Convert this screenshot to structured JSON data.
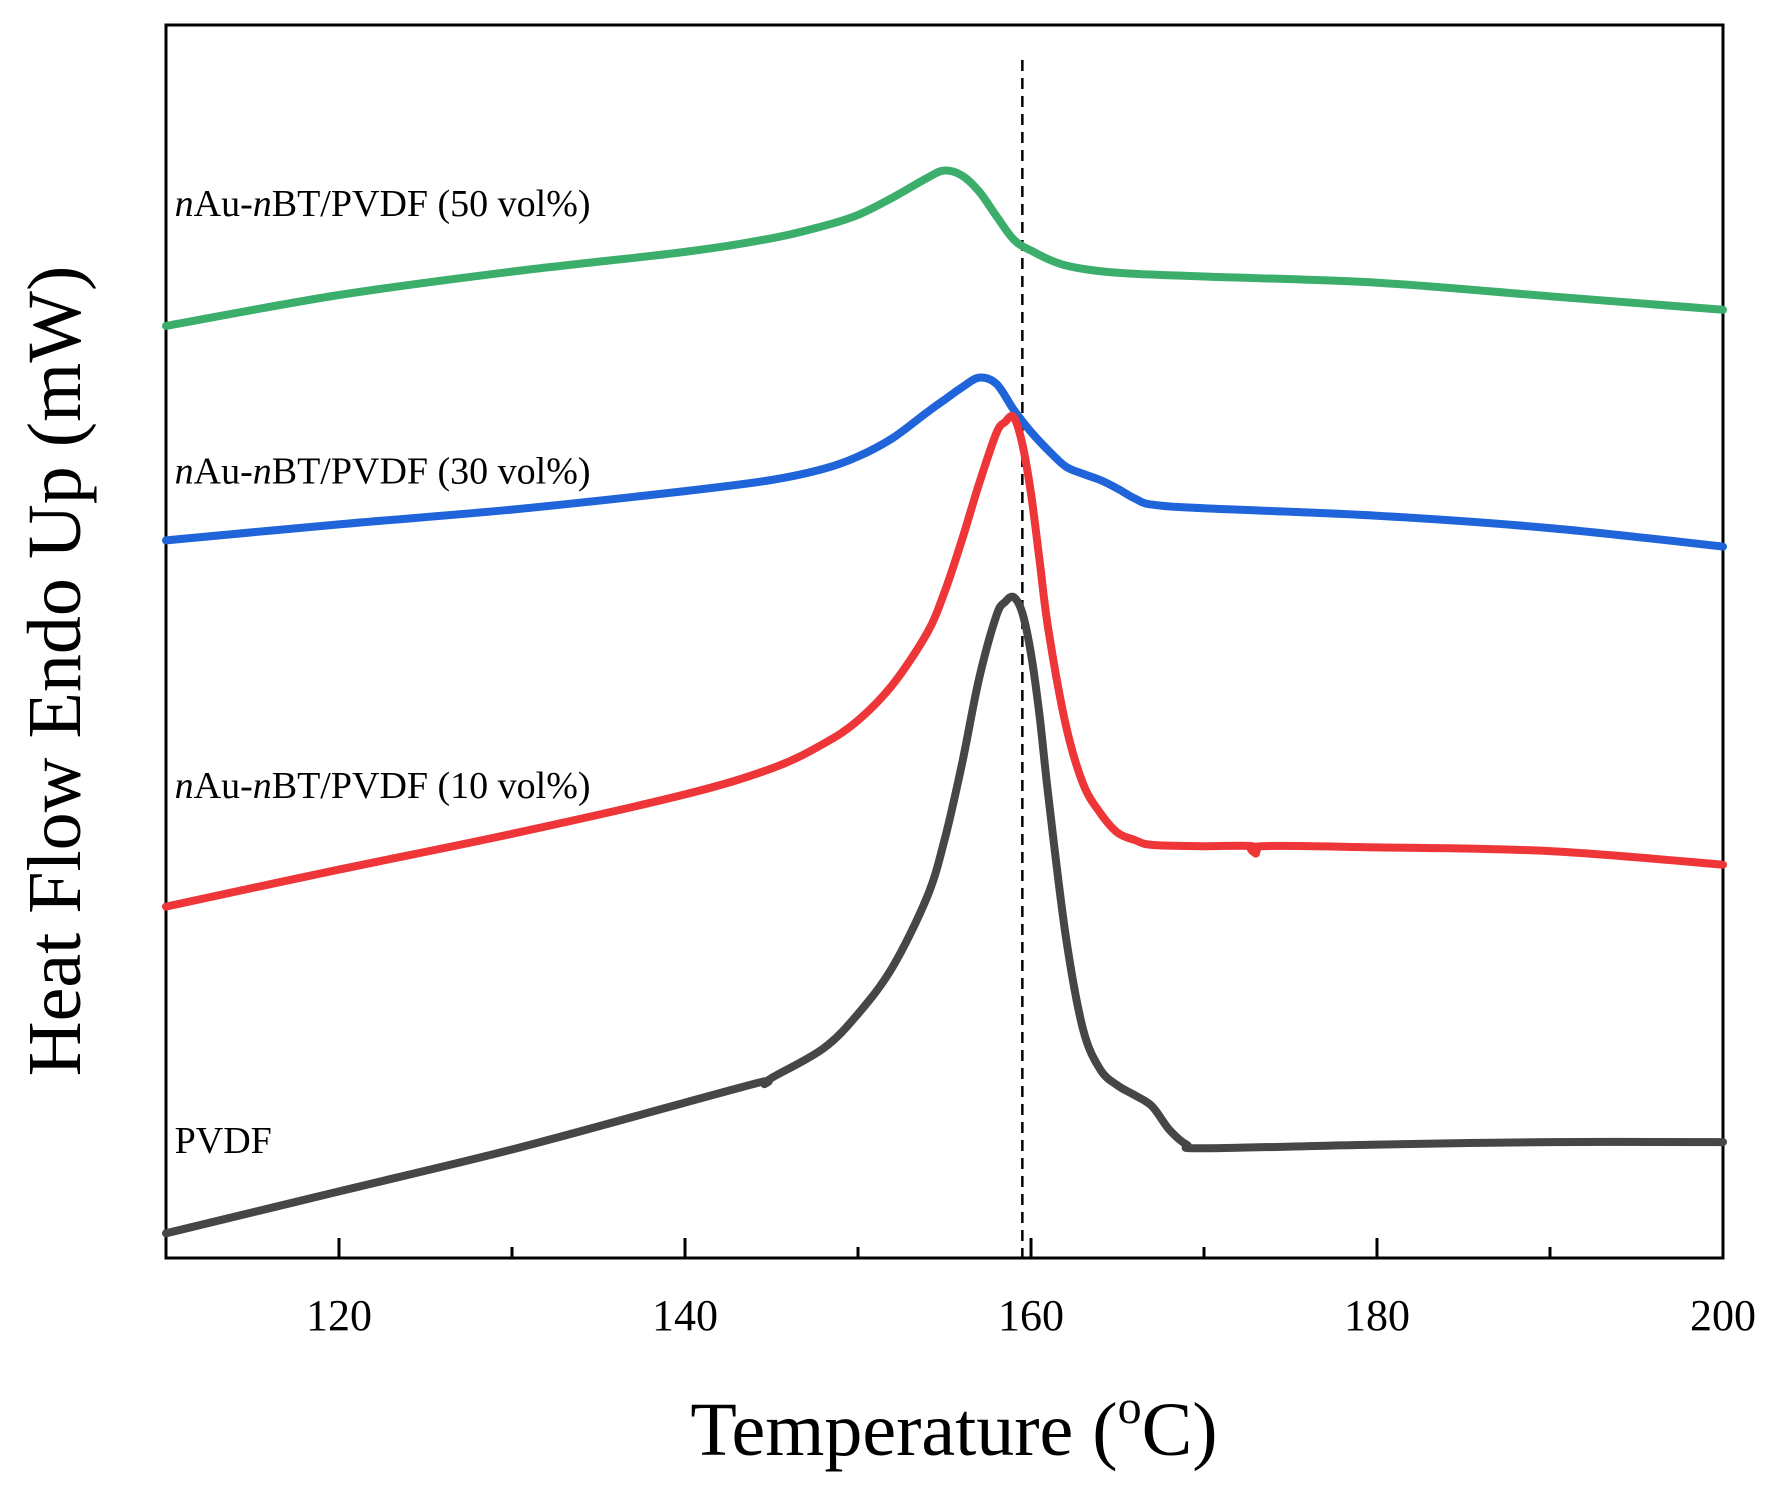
{
  "chart_data": {
    "type": "line",
    "xlabel": "Temperature (",
    "xlabel_sup": "o",
    "xlabel_end": "C)",
    "ylabel": "Heat Flow Endo Up (mW)",
    "xlim": [
      110,
      200
    ],
    "ylim": [
      0,
      100
    ],
    "x_ticks_major": [
      120,
      140,
      160,
      180,
      200
    ],
    "x_ticks_minor": [
      130,
      150,
      170,
      190
    ],
    "y_ticks_labeled": false,
    "grid": false,
    "reference_line": {
      "x": 159.5,
      "style": "dashed"
    },
    "series": [
      {
        "italic_prefix": "n",
        "mid_text": "Au-",
        "italic_mid": "n",
        "suffix": "BT/PVDF (50 vol%)",
        "color": "#3cae6c",
        "label_anchor": [
          110.5,
          84.5
        ],
        "x": [
          110,
          120,
          130,
          140,
          145,
          148,
          150,
          152,
          154,
          155,
          156,
          157,
          158,
          159,
          160,
          162,
          165,
          170,
          180,
          190,
          200
        ],
        "y": [
          75.6,
          78.1,
          80.0,
          81.6,
          82.7,
          83.7,
          84.6,
          86.0,
          87.6,
          88.2,
          87.8,
          86.5,
          84.5,
          82.6,
          81.7,
          80.5,
          79.9,
          79.6,
          79.1,
          78.0,
          76.9
        ]
      },
      {
        "italic_prefix": "n",
        "mid_text": "Au-",
        "italic_mid": "n",
        "suffix": "BT/PVDF (30 vol%)",
        "color": "#1f64d9",
        "label_anchor": [
          110.5,
          62.8
        ],
        "x": [
          110,
          120,
          130,
          140,
          145,
          148,
          150,
          152,
          154,
          155,
          156,
          157,
          158,
          159,
          160,
          161,
          162,
          163,
          164,
          165,
          166,
          167,
          170,
          180,
          190,
          200
        ],
        "y": [
          58.2,
          59.5,
          60.7,
          62.2,
          63.1,
          64.0,
          65.0,
          66.5,
          68.6,
          69.6,
          70.6,
          71.4,
          70.9,
          68.8,
          67.0,
          65.5,
          64.2,
          63.6,
          63.1,
          62.4,
          61.6,
          61.1,
          60.8,
          60.2,
          59.2,
          57.7
        ]
      },
      {
        "italic_prefix": "n",
        "mid_text": "Au-",
        "italic_mid": "n",
        "suffix": "BT/PVDF (10 vol%)",
        "color": "#ee3538",
        "label_anchor": [
          110.5,
          37.3
        ],
        "x": [
          110,
          120,
          130,
          140,
          145,
          148,
          150,
          152,
          154,
          155,
          156,
          157,
          158,
          158.5,
          159,
          159.5,
          160,
          160.5,
          161,
          162,
          163,
          164,
          165,
          166,
          167,
          170,
          172.8,
          173,
          173.3,
          180,
          190,
          200
        ],
        "y": [
          28.5,
          31.5,
          34.4,
          37.6,
          39.7,
          41.7,
          43.6,
          46.5,
          50.7,
          54.0,
          58.2,
          62.8,
          66.9,
          67.8,
          68.2,
          66.0,
          62.0,
          56.5,
          51.0,
          43.3,
          38.5,
          36.1,
          34.5,
          33.9,
          33.5,
          33.4,
          33.4,
          32.8,
          33.4,
          33.3,
          33.0,
          31.9
        ]
      },
      {
        "name": "PVDF",
        "color": "#464646",
        "label_anchor": [
          110.5,
          8.5
        ],
        "x": [
          110,
          120,
          130,
          140,
          144.5,
          144.6,
          145,
          148,
          150,
          152,
          154,
          155,
          156,
          157,
          158,
          158.5,
          159,
          159.5,
          160,
          160.5,
          161,
          162,
          163,
          164,
          165,
          166,
          167,
          168,
          169,
          170,
          180,
          190,
          200
        ],
        "y": [
          2.0,
          5.4,
          8.8,
          12.6,
          14.3,
          14.1,
          14.6,
          17.0,
          19.8,
          23.6,
          29.3,
          33.9,
          40.0,
          47.0,
          52.1,
          53.2,
          53.6,
          52.3,
          49.0,
          43.9,
          37.5,
          26.2,
          18.6,
          15.3,
          14.0,
          13.2,
          12.3,
          10.4,
          9.2,
          8.9,
          9.2,
          9.4,
          9.4
        ]
      }
    ]
  }
}
